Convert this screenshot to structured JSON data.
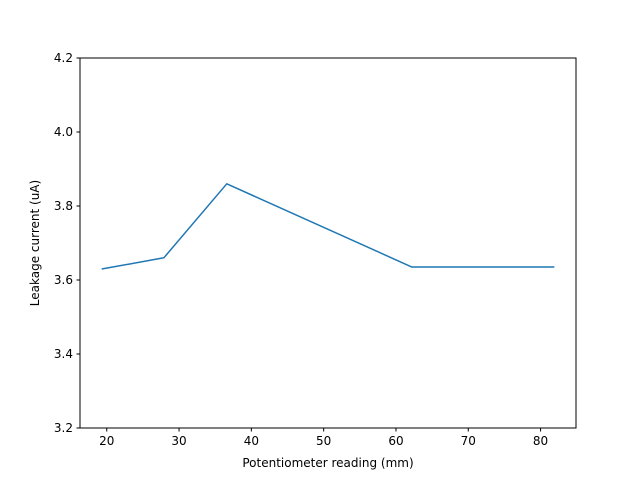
{
  "chart_data": {
    "type": "line",
    "title": "",
    "xlabel": "Potentiometer reading (mm)",
    "ylabel": "Leakage current (uA)",
    "xlim": [
      16.3,
      84.9
    ],
    "ylim": [
      3.2,
      4.2
    ],
    "x_ticks": [
      20,
      30,
      40,
      50,
      60,
      70,
      80
    ],
    "y_ticks": [
      "3.2",
      "3.4",
      "3.6",
      "3.8",
      "4.0",
      "4.2"
    ],
    "grid": false,
    "series": [
      {
        "color": "#1f77b4",
        "x": [
          19.4,
          27.9,
          36.6,
          62.2,
          81.8
        ],
        "y": [
          3.63,
          3.66,
          3.86,
          3.635,
          3.635
        ]
      }
    ]
  }
}
